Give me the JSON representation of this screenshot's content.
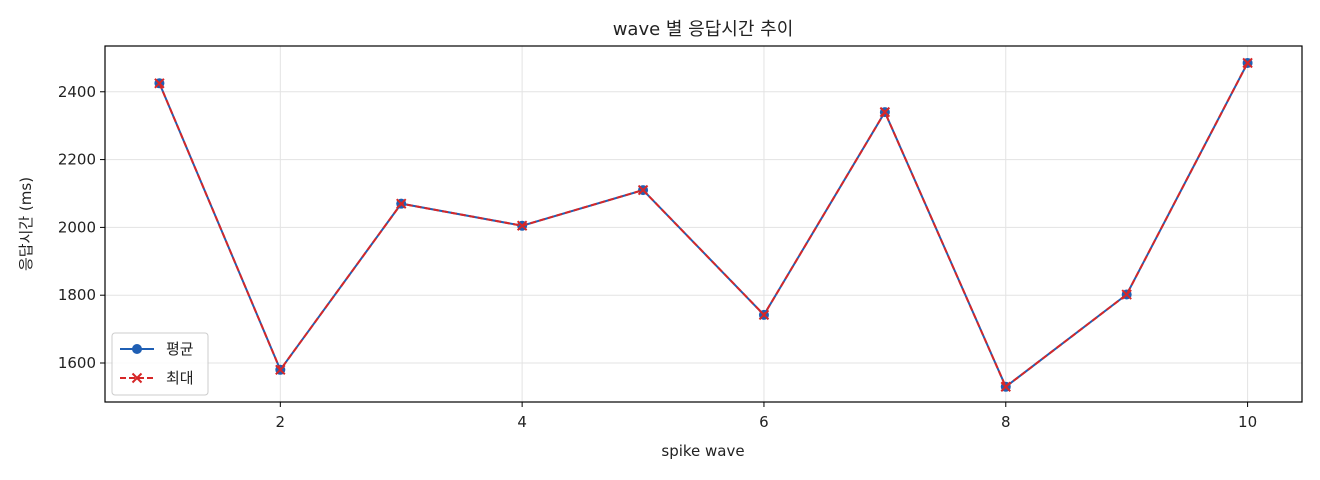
{
  "chart_data": {
    "type": "line",
    "title": "wave 별 응답시간 추이",
    "xlabel": "spike wave",
    "ylabel": "응답시간 (ms)",
    "x": [
      1,
      2,
      3,
      4,
      5,
      6,
      7,
      8,
      9,
      10
    ],
    "xlim": [
      0.55,
      10.45
    ],
    "ylim": [
      1485,
      2535
    ],
    "xticks": [
      2,
      4,
      6,
      8,
      10
    ],
    "yticks": [
      1600,
      1800,
      2000,
      2200,
      2400
    ],
    "grid": true,
    "legend_position": "lower-left",
    "series": [
      {
        "name": "평균",
        "values": [
          2425,
          1580,
          2070,
          2005,
          2110,
          1742,
          2340,
          1530,
          1802,
          2485
        ],
        "color": "#1f5fb4",
        "marker": "circle",
        "linestyle": "solid"
      },
      {
        "name": "최대",
        "values": [
          2425,
          1580,
          2070,
          2005,
          2110,
          1742,
          2340,
          1530,
          1802,
          2485
        ],
        "color": "#d62728",
        "marker": "x",
        "linestyle": "dashed"
      }
    ]
  }
}
